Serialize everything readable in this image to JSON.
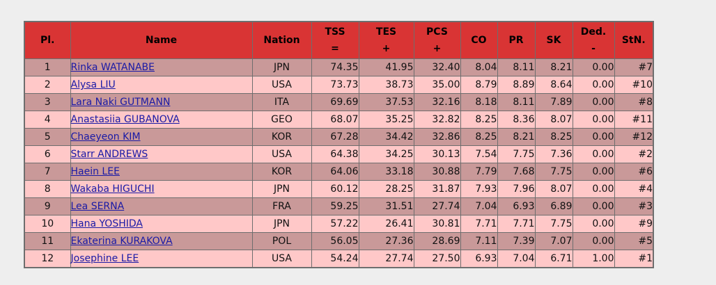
{
  "columns": [
    {
      "key": "pl",
      "line1": "Pl.",
      "line2": ""
    },
    {
      "key": "name",
      "line1": "Name",
      "line2": ""
    },
    {
      "key": "nation",
      "line1": "Nation",
      "line2": ""
    },
    {
      "key": "tss",
      "line1": "TSS",
      "line2": "="
    },
    {
      "key": "tes",
      "line1": "TES",
      "line2": "+"
    },
    {
      "key": "pcs",
      "line1": "PCS",
      "line2": "+"
    },
    {
      "key": "co",
      "line1": "CO",
      "line2": ""
    },
    {
      "key": "pr",
      "line1": "PR",
      "line2": ""
    },
    {
      "key": "sk",
      "line1": "SK",
      "line2": ""
    },
    {
      "key": "ded",
      "line1": "Ded.",
      "line2": "-"
    },
    {
      "key": "stn",
      "line1": "StN.",
      "line2": ""
    }
  ],
  "rows": [
    {
      "pl": "1",
      "name": "Rinka WATANABE",
      "nation": "JPN",
      "tss": "74.35",
      "tes": "41.95",
      "pcs": "32.40",
      "co": "8.04",
      "pr": "8.11",
      "sk": "8.21",
      "ded": "0.00",
      "stn": "#7"
    },
    {
      "pl": "2",
      "name": "Alysa LIU",
      "nation": "USA",
      "tss": "73.73",
      "tes": "38.73",
      "pcs": "35.00",
      "co": "8.79",
      "pr": "8.89",
      "sk": "8.64",
      "ded": "0.00",
      "stn": "#10"
    },
    {
      "pl": "3",
      "name": "Lara Naki GUTMANN",
      "nation": "ITA",
      "tss": "69.69",
      "tes": "37.53",
      "pcs": "32.16",
      "co": "8.18",
      "pr": "8.11",
      "sk": "7.89",
      "ded": "0.00",
      "stn": "#8"
    },
    {
      "pl": "4",
      "name": "Anastasiia GUBANOVA",
      "nation": "GEO",
      "tss": "68.07",
      "tes": "35.25",
      "pcs": "32.82",
      "co": "8.25",
      "pr": "8.36",
      "sk": "8.07",
      "ded": "0.00",
      "stn": "#11"
    },
    {
      "pl": "5",
      "name": "Chaeyeon KIM",
      "nation": "KOR",
      "tss": "67.28",
      "tes": "34.42",
      "pcs": "32.86",
      "co": "8.25",
      "pr": "8.21",
      "sk": "8.25",
      "ded": "0.00",
      "stn": "#12"
    },
    {
      "pl": "6",
      "name": "Starr ANDREWS",
      "nation": "USA",
      "tss": "64.38",
      "tes": "34.25",
      "pcs": "30.13",
      "co": "7.54",
      "pr": "7.75",
      "sk": "7.36",
      "ded": "0.00",
      "stn": "#2"
    },
    {
      "pl": "7",
      "name": "Haein LEE",
      "nation": "KOR",
      "tss": "64.06",
      "tes": "33.18",
      "pcs": "30.88",
      "co": "7.79",
      "pr": "7.68",
      "sk": "7.75",
      "ded": "0.00",
      "stn": "#6"
    },
    {
      "pl": "8",
      "name": "Wakaba HIGUCHI",
      "nation": "JPN",
      "tss": "60.12",
      "tes": "28.25",
      "pcs": "31.87",
      "co": "7.93",
      "pr": "7.96",
      "sk": "8.07",
      "ded": "0.00",
      "stn": "#4"
    },
    {
      "pl": "9",
      "name": "Lea SERNA",
      "nation": "FRA",
      "tss": "59.25",
      "tes": "31.51",
      "pcs": "27.74",
      "co": "7.04",
      "pr": "6.93",
      "sk": "6.89",
      "ded": "0.00",
      "stn": "#3"
    },
    {
      "pl": "10",
      "name": "Hana YOSHIDA",
      "nation": "JPN",
      "tss": "57.22",
      "tes": "26.41",
      "pcs": "30.81",
      "co": "7.71",
      "pr": "7.71",
      "sk": "7.75",
      "ded": "0.00",
      "stn": "#9"
    },
    {
      "pl": "11",
      "name": "Ekaterina KURAKOVA",
      "nation": "POL",
      "tss": "56.05",
      "tes": "27.36",
      "pcs": "28.69",
      "co": "7.11",
      "pr": "7.39",
      "sk": "7.07",
      "ded": "0.00",
      "stn": "#5"
    },
    {
      "pl": "12",
      "name": "Josephine LEE",
      "nation": "USA",
      "tss": "54.24",
      "tes": "27.74",
      "pcs": "27.50",
      "co": "6.93",
      "pr": "7.04",
      "sk": "6.71",
      "ded": "1.00",
      "stn": "#1"
    }
  ],
  "colors": {
    "header_bg": "#d93434",
    "row_odd": "#c99999",
    "row_even": "#ffc8c8",
    "link": "#1a1aa6",
    "page_bg": "#eeeeee"
  }
}
